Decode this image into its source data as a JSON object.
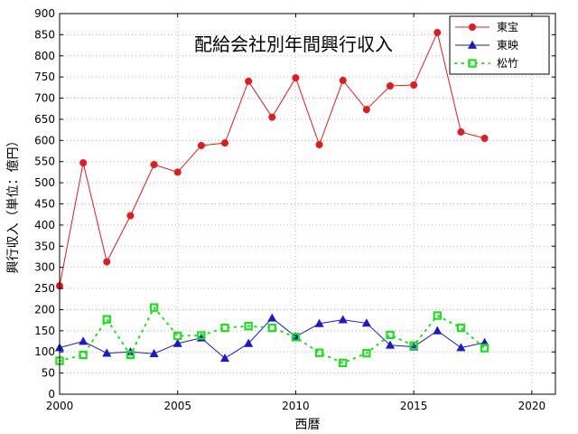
{
  "chart_data": {
    "type": "line",
    "title": "配給会社別年間興行収入",
    "xlabel": "西暦",
    "ylabel": "興行収入（単位：億円）",
    "xlim": [
      2000,
      2021
    ],
    "ylim": [
      0,
      900
    ],
    "xticks": [
      2000,
      2005,
      2010,
      2015,
      2020
    ],
    "yticks": [
      0,
      50,
      100,
      150,
      200,
      250,
      300,
      350,
      400,
      450,
      500,
      550,
      600,
      650,
      700,
      750,
      800,
      850,
      900
    ],
    "grid": true,
    "legend_position": "top-right",
    "x": [
      2000,
      2001,
      2002,
      2003,
      2004,
      2005,
      2006,
      2007,
      2008,
      2009,
      2010,
      2011,
      2012,
      2013,
      2014,
      2015,
      2016,
      2017,
      2018
    ],
    "series": [
      {
        "name": "東宝",
        "color": "#e41a1c",
        "marker": "circle",
        "line": "solid",
        "values": [
          256,
          547,
          313,
          422,
          543,
          525,
          588,
          594,
          740,
          655,
          748,
          590,
          742,
          673,
          729,
          731,
          855,
          620,
          605
        ]
      },
      {
        "name": "東映",
        "color": "#1a1acc",
        "marker": "triangle",
        "line": "solid",
        "values": [
          110,
          125,
          97,
          100,
          96,
          120,
          133,
          85,
          120,
          180,
          136,
          167,
          176,
          168,
          116,
          112,
          150,
          110,
          122
        ]
      },
      {
        "name": "松竹",
        "color": "#1fe01f",
        "marker": "square",
        "line": "dotted",
        "values": [
          79,
          93,
          177,
          93,
          205,
          138,
          139,
          157,
          161,
          157,
          135,
          98,
          74,
          97,
          140,
          115,
          186,
          157,
          109
        ]
      }
    ]
  }
}
